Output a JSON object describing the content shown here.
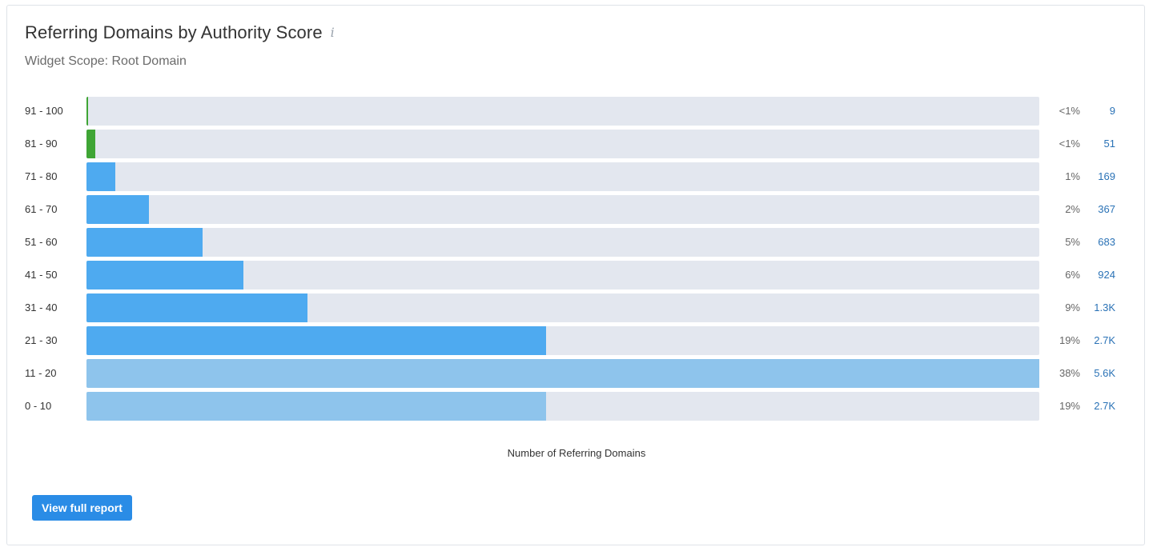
{
  "widget": {
    "title": "Referring Domains by Authority Score",
    "info_icon_glyph": "i",
    "subtitle": "Widget Scope: Root Domain",
    "button_label": "View full report"
  },
  "chart_data": {
    "type": "bar",
    "orientation": "horizontal",
    "xlabel": "Number of Referring Domains",
    "categories": [
      "91 - 100",
      "81 - 90",
      "71 - 80",
      "61 - 70",
      "51 - 60",
      "41 - 50",
      "31 - 40",
      "21 - 30",
      "11 - 20",
      "0 - 10"
    ],
    "values": [
      9,
      51,
      169,
      367,
      683,
      924,
      1300,
      2700,
      5600,
      2700
    ],
    "percent_labels": [
      "<1%",
      "<1%",
      "1%",
      "2%",
      "5%",
      "6%",
      "9%",
      "19%",
      "38%",
      "19%"
    ],
    "count_labels": [
      "9",
      "51",
      "169",
      "367",
      "683",
      "924",
      "1.3K",
      "2.7K",
      "5.6K",
      "2.7K"
    ],
    "bar_colors": [
      "#3fa535",
      "#3fa535",
      "#4eaaf0",
      "#4eaaf0",
      "#4eaaf0",
      "#4eaaf0",
      "#4eaaf0",
      "#4eaaf0",
      "#8ec4ec",
      "#8ec4ec"
    ],
    "track_color": "#e3e7ef",
    "xlim": [
      0,
      5600
    ],
    "grid": false,
    "legend": "none"
  }
}
